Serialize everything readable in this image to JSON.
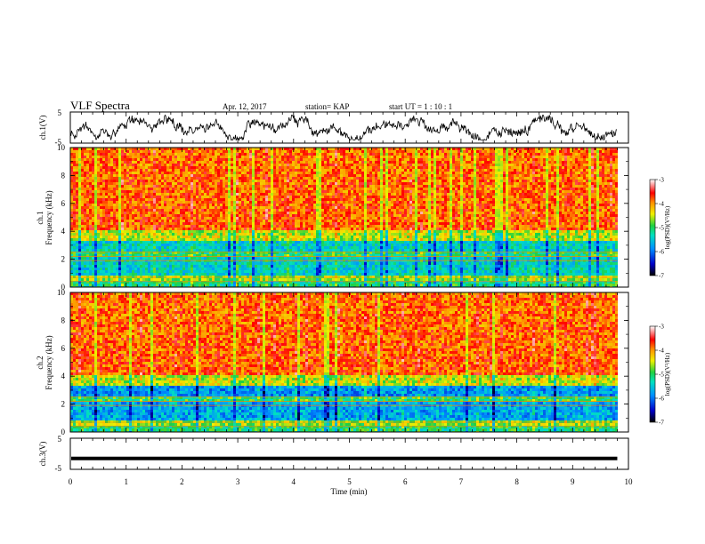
{
  "header": {
    "title": "VLF Spectra",
    "date": "Apr. 12, 2017",
    "station": "station= KAP",
    "start": "start  UT =   1 : 10 : 1"
  },
  "chart_data": [
    {
      "type": "line",
      "panel": "ch1-waveform",
      "ylabel": "ch.1(V)",
      "ylim": [
        -5,
        5
      ],
      "yticks": [
        "5",
        "-5"
      ],
      "xlim": [
        0,
        10
      ],
      "series": [
        {
          "values_range": [
            -4,
            4
          ],
          "color": "#000000"
        }
      ]
    },
    {
      "type": "heatmap",
      "panel": "ch1-spectrogram",
      "ylabel_top": "ch.1",
      "ylabel": "Frequency (kHz)",
      "ylim": [
        0,
        10
      ],
      "yticks": [
        "0",
        "2",
        "4",
        "6",
        "8",
        "10"
      ],
      "xlim": [
        0,
        9.8
      ],
      "colorbar": {
        "label": "log(PSD)(V²/Hz)",
        "range": [
          -7,
          -3
        ],
        "ticks": [
          "-3",
          "-4",
          "-5",
          "-6",
          "-7"
        ]
      }
    },
    {
      "type": "heatmap",
      "panel": "ch2-spectrogram",
      "ylabel_top": "ch.2",
      "ylabel": "Frequency (kHz)",
      "ylim": [
        0,
        10
      ],
      "yticks": [
        "0",
        "2",
        "4",
        "6",
        "8",
        "10"
      ],
      "xlim": [
        0,
        9.8
      ],
      "colorbar": {
        "label": "log(PSD)(V²/Hz)",
        "range": [
          -7,
          -3
        ],
        "ticks": [
          "-3",
          "-4",
          "-5",
          "-6",
          "-7"
        ]
      }
    },
    {
      "type": "line",
      "panel": "ch3-waveform",
      "ylabel": "ch.3(V)",
      "ylim": [
        -5,
        5
      ],
      "yticks": [
        "5",
        "-5"
      ],
      "xlim": [
        0,
        10
      ],
      "series": [
        {
          "constant": -1.5,
          "color": "#000000"
        }
      ]
    }
  ],
  "xaxis": {
    "label": "Time (min)",
    "ticks": [
      "0",
      "1",
      "2",
      "3",
      "4",
      "5",
      "6",
      "7",
      "8",
      "9",
      "10"
    ]
  }
}
